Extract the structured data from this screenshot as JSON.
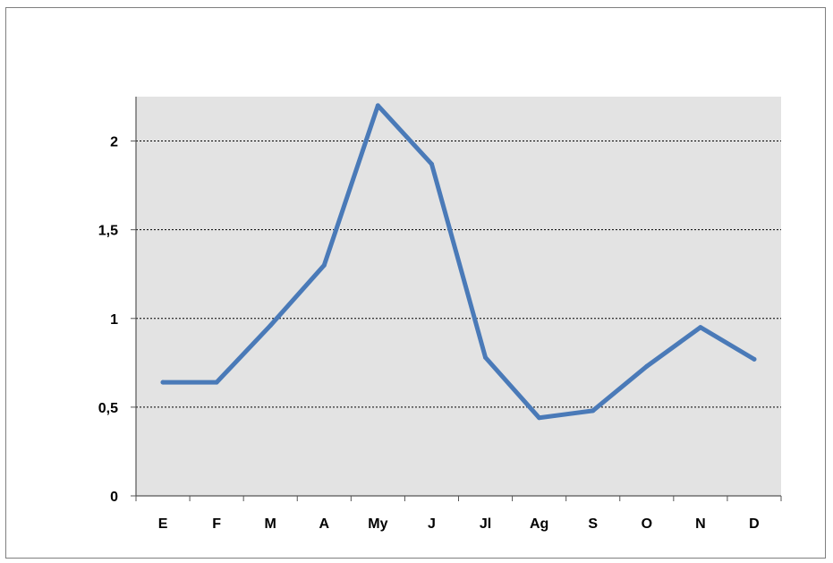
{
  "colors": {
    "plot_background": "#e3e3e3",
    "series_line": "#4a7ab8",
    "gridline": "#000000",
    "axis": "#555555"
  },
  "chart_data": {
    "type": "line",
    "title": "",
    "xlabel": "",
    "ylabel": "",
    "categories": [
      "E",
      "F",
      "M",
      "A",
      "My",
      "J",
      "Jl",
      "Ag",
      "S",
      "O",
      "N",
      "D"
    ],
    "series": [
      {
        "values": [
          0.64,
          0.64,
          0.96,
          1.3,
          2.2,
          1.87,
          0.78,
          0.44,
          0.48,
          0.73,
          0.95,
          0.77
        ]
      }
    ],
    "ylim": [
      0,
      2.25
    ],
    "yticks": [
      0,
      0.5,
      1,
      1.5,
      2
    ],
    "ytick_labels": [
      "0",
      "0,5",
      "1",
      "1,5",
      "2"
    ],
    "grid": "horizontal dotted",
    "legend": "none"
  }
}
